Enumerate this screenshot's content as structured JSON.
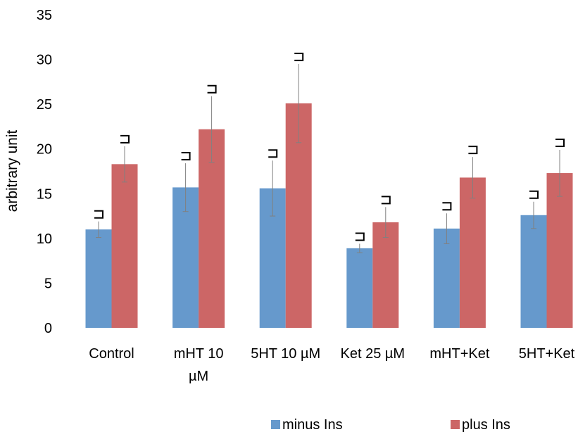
{
  "chart_data": {
    "type": "bar",
    "title": "",
    "xlabel": "",
    "ylabel": "arbitrary unit",
    "ylim": [
      0,
      35
    ],
    "yticks": [
      0,
      5,
      10,
      15,
      20,
      25,
      30,
      35
    ],
    "grid": false,
    "legend_position": "bottom-right",
    "categories": [
      [
        "Control"
      ],
      [
        "mHT  10",
        "µM"
      ],
      [
        "5HT 10 µM"
      ],
      [
        "Ket 25 µM"
      ],
      [
        "mHT+Ket"
      ],
      [
        "5HT+Ket"
      ]
    ],
    "series": [
      {
        "name": "minus Ins",
        "color": "#6699cc",
        "values": [
          11.0,
          15.7,
          15.6,
          8.9,
          11.1,
          12.6
        ],
        "errors": [
          0.9,
          2.7,
          3.1,
          0.5,
          1.7,
          1.5
        ]
      },
      {
        "name": "plus Ins",
        "color": "#cc6666",
        "values": [
          18.3,
          22.2,
          25.1,
          11.8,
          16.8,
          17.3
        ],
        "errors": [
          2.0,
          3.7,
          4.4,
          1.7,
          2.3,
          2.6
        ]
      }
    ]
  }
}
